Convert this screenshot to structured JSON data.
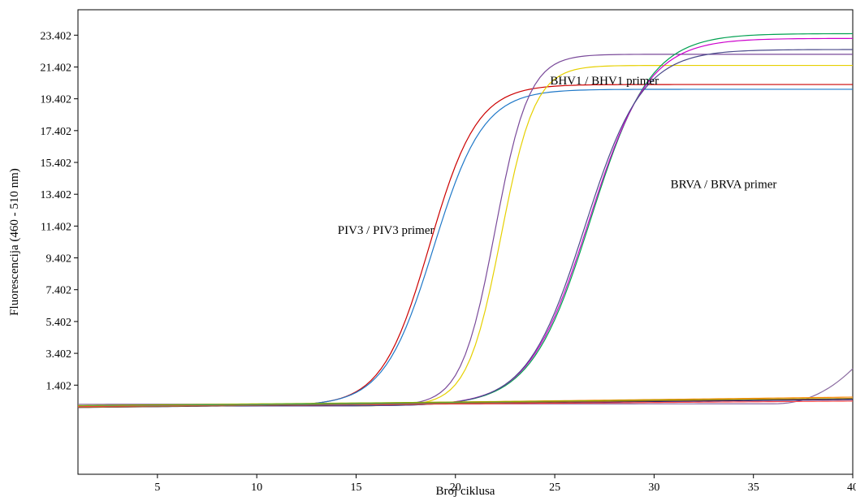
{
  "chart_data": {
    "type": "line",
    "title": "",
    "xlabel": "Broj ciklusa",
    "ylabel": "Fluorescencija (460 - 510 nm)",
    "xlim": [
      1,
      40
    ],
    "ylim": [
      -4.2,
      25
    ],
    "grid": false,
    "x_ticks": [
      5,
      10,
      15,
      20,
      25,
      30,
      35,
      40
    ],
    "y_ticks": [
      {
        "value": 1.402,
        "label": "1.402"
      },
      {
        "value": 3.402,
        "label": "3.402"
      },
      {
        "value": 5.402,
        "label": "5.402"
      },
      {
        "value": 7.402,
        "label": "7.402"
      },
      {
        "value": 9.402,
        "label": "9.402"
      },
      {
        "value": 11.402,
        "label": "11.402"
      },
      {
        "value": 13.402,
        "label": "13.402"
      },
      {
        "value": 15.402,
        "label": "15.402"
      },
      {
        "value": 17.402,
        "label": "17.402"
      },
      {
        "value": 19.402,
        "label": "19.402"
      },
      {
        "value": 21.402,
        "label": "21.402"
      },
      {
        "value": 23.402,
        "label": "23.402"
      }
    ],
    "annotations": [
      {
        "text": "BHV1 / BHV1 primer",
        "x": 27.5,
        "y": 20.3
      },
      {
        "text": "BRVA / BRVA primer",
        "x": 33.5,
        "y": 13.8
      },
      {
        "text": "PIV3 / PIV3 primer",
        "x": 16.5,
        "y": 10.9
      }
    ],
    "series": [
      {
        "color": "#cc0000",
        "curve": {
          "type": "sigmoid",
          "base": 0.1,
          "plateau": 20.3,
          "mid": 18.7,
          "slope": 1.2,
          "drift": 0
        }
      },
      {
        "color": "#1f78c8",
        "curve": {
          "type": "sigmoid",
          "base": 0.1,
          "plateau": 20.0,
          "mid": 18.9,
          "slope": 1.25,
          "drift": 0
        }
      },
      {
        "color": "#7a4a9a",
        "curve": {
          "type": "sigmoid",
          "base": 0.1,
          "plateau": 22.2,
          "mid": 22.0,
          "slope": 0.85,
          "drift": 0
        }
      },
      {
        "color": "#e6d000",
        "curve": {
          "type": "sigmoid",
          "base": 0.1,
          "plateau": 21.5,
          "mid": 22.3,
          "slope": 0.85,
          "drift": 0
        }
      },
      {
        "color": "#00a050",
        "curve": {
          "type": "sigmoid",
          "base": 0.1,
          "plateau": 23.5,
          "mid": 26.8,
          "slope": 1.5,
          "drift": 0
        }
      },
      {
        "color": "#cc00cc",
        "curve": {
          "type": "sigmoid",
          "base": 0.1,
          "plateau": 23.2,
          "mid": 26.7,
          "slope": 1.5,
          "drift": 0
        }
      },
      {
        "color": "#4a4a8a",
        "curve": {
          "type": "sigmoid",
          "base": 0.1,
          "plateau": 22.5,
          "mid": 26.5,
          "slope": 1.45,
          "drift": 0
        }
      },
      {
        "color": "#8a6aa0",
        "curve": {
          "type": "late",
          "base": 0.2,
          "end": 2.4,
          "start_x": 36
        }
      },
      {
        "color": "#ff8800",
        "curve": {
          "type": "flat",
          "base": 0.05,
          "drift": 0.6
        }
      },
      {
        "color": "#00aacc",
        "curve": {
          "type": "flat",
          "base": 0.1,
          "drift": 0.4
        }
      },
      {
        "color": "#000080",
        "curve": {
          "type": "flat",
          "base": 0.0,
          "drift": 0.5
        }
      },
      {
        "color": "#88aa00",
        "curve": {
          "type": "flat",
          "base": 0.12,
          "drift": 0.45
        }
      },
      {
        "color": "#ff4444",
        "curve": {
          "type": "flat",
          "base": 0.05,
          "drift": 0.35
        }
      },
      {
        "color": "#996633",
        "curve": {
          "type": "flat",
          "base": 0.0,
          "drift": 0.55
        }
      }
    ]
  }
}
